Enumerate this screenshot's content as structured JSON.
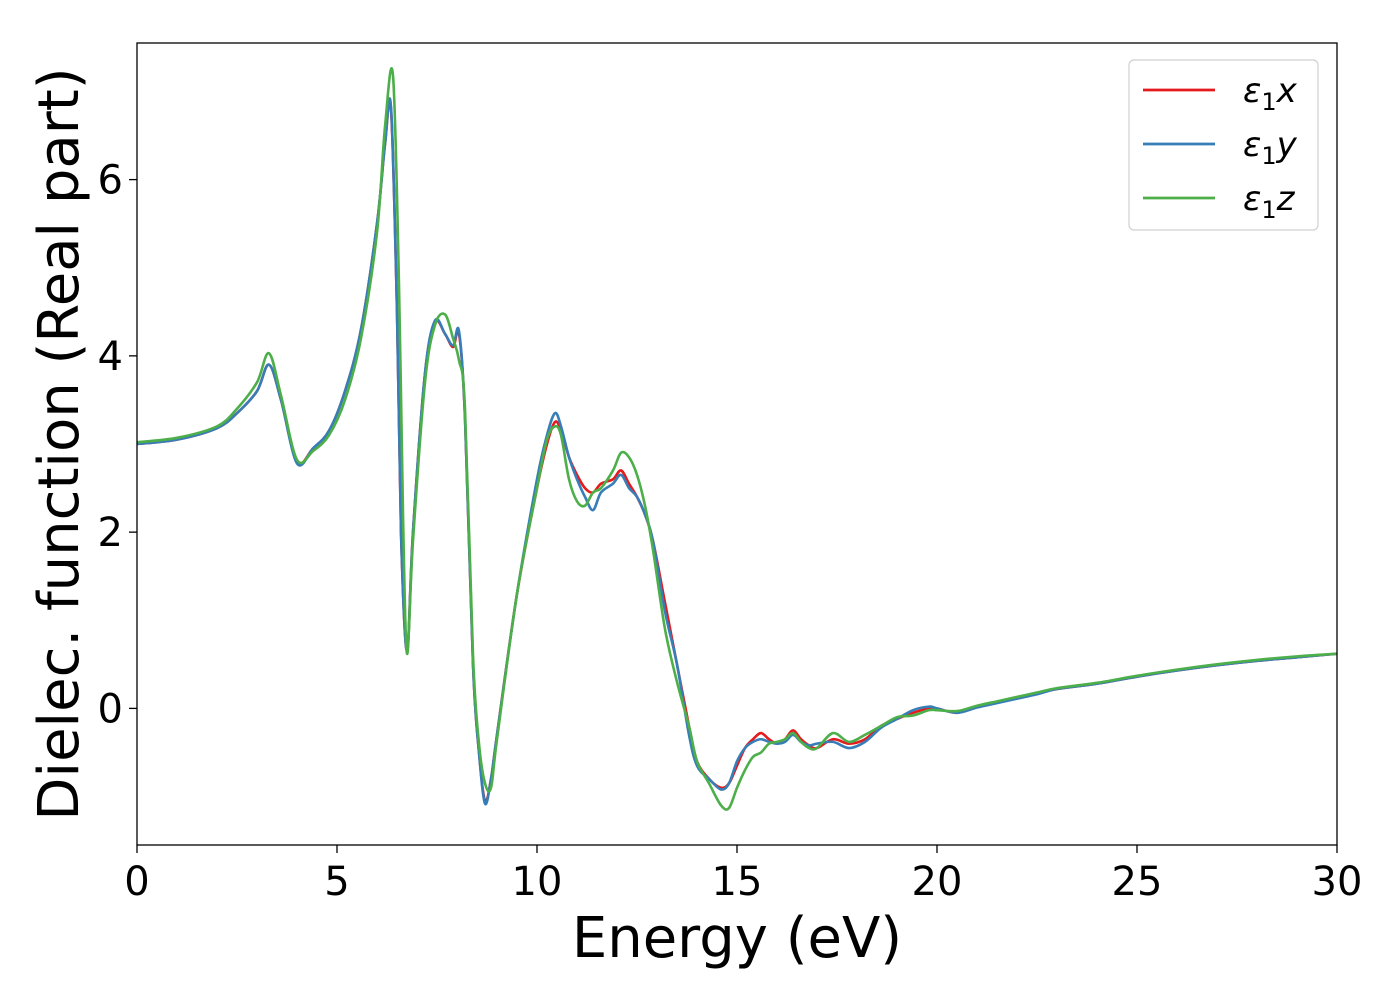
{
  "chart_data": {
    "type": "line",
    "title": "",
    "xlabel": "Energy (eV)",
    "ylabel": "Dielec. function (Real part)",
    "xlim": [
      0,
      30
    ],
    "ylim": [
      -1.55,
      7.55
    ],
    "xticks": [
      0,
      5,
      10,
      15,
      20,
      25,
      30
    ],
    "yticks": [
      0,
      2,
      4,
      6
    ],
    "grid": false,
    "legend_position": "top-right",
    "series": [
      {
        "name": "ε1x",
        "legend_base": "ε",
        "legend_sub": "1",
        "legend_suffix": "x",
        "color": "#e41a1c",
        "x": [
          0,
          1,
          2,
          2.5,
          3.0,
          3.3,
          3.6,
          4.0,
          4.4,
          4.8,
          5.2,
          5.6,
          6.0,
          6.2,
          6.35,
          6.5,
          6.6,
          6.75,
          6.9,
          7.2,
          7.45,
          7.7,
          7.9,
          8.05,
          8.2,
          8.4,
          8.55,
          8.7,
          8.85,
          9.0,
          9.5,
          10.0,
          10.25,
          10.45,
          10.6,
          10.8,
          11.0,
          11.2,
          11.4,
          11.6,
          11.9,
          12.1,
          12.3,
          12.5,
          12.7,
          12.9,
          13.2,
          13.5,
          13.8,
          14.0,
          14.3,
          14.6,
          14.8,
          15.0,
          15.2,
          15.4,
          15.6,
          15.8,
          16.0,
          16.2,
          16.4,
          16.6,
          16.8,
          17.0,
          17.4,
          17.8,
          18.2,
          18.6,
          19.0,
          19.4,
          19.8,
          20.0,
          20.5,
          21.0,
          21.5,
          22.0,
          22.5,
          23.0,
          24.0,
          25.0,
          26.0,
          27.0,
          28.0,
          29.0,
          30.0
        ],
        "y": [
          3.0,
          3.05,
          3.18,
          3.35,
          3.6,
          3.9,
          3.5,
          2.8,
          2.95,
          3.15,
          3.6,
          4.3,
          5.5,
          6.4,
          6.8,
          4.5,
          2.0,
          0.65,
          2.0,
          3.8,
          4.38,
          4.25,
          4.1,
          4.25,
          3.3,
          0.5,
          -0.5,
          -1.05,
          -0.8,
          -0.3,
          1.3,
          2.5,
          3.0,
          3.25,
          3.15,
          2.85,
          2.65,
          2.5,
          2.45,
          2.55,
          2.6,
          2.7,
          2.55,
          2.4,
          2.2,
          1.9,
          1.2,
          0.5,
          -0.2,
          -0.6,
          -0.8,
          -0.9,
          -0.85,
          -0.65,
          -0.45,
          -0.35,
          -0.28,
          -0.35,
          -0.4,
          -0.35,
          -0.25,
          -0.35,
          -0.42,
          -0.45,
          -0.35,
          -0.4,
          -0.35,
          -0.2,
          -0.12,
          -0.05,
          0.0,
          0.0,
          -0.05,
          0.02,
          0.07,
          0.12,
          0.17,
          0.22,
          0.28,
          0.36,
          0.43,
          0.49,
          0.54,
          0.58,
          0.62
        ]
      },
      {
        "name": "ε1y",
        "legend_base": "ε",
        "legend_sub": "1",
        "legend_suffix": "y",
        "color": "#377eb8",
        "x": [
          0,
          1,
          2,
          2.5,
          3.0,
          3.3,
          3.6,
          4.0,
          4.4,
          4.8,
          5.2,
          5.6,
          6.0,
          6.2,
          6.35,
          6.5,
          6.6,
          6.75,
          6.9,
          7.2,
          7.45,
          7.7,
          7.9,
          8.05,
          8.2,
          8.4,
          8.55,
          8.7,
          8.85,
          9.0,
          9.5,
          10.0,
          10.25,
          10.45,
          10.6,
          10.8,
          11.0,
          11.2,
          11.4,
          11.6,
          11.9,
          12.1,
          12.3,
          12.5,
          12.7,
          12.9,
          13.2,
          13.5,
          13.8,
          14.0,
          14.3,
          14.6,
          14.8,
          15.0,
          15.2,
          15.4,
          15.6,
          15.8,
          16.0,
          16.2,
          16.4,
          16.6,
          16.8,
          17.0,
          17.4,
          17.8,
          18.2,
          18.6,
          19.0,
          19.4,
          19.8,
          20.0,
          20.5,
          21.0,
          21.5,
          22.0,
          22.5,
          23.0,
          24.0,
          25.0,
          26.0,
          27.0,
          28.0,
          29.0,
          30.0
        ],
        "y": [
          3.0,
          3.05,
          3.18,
          3.35,
          3.6,
          3.9,
          3.5,
          2.78,
          2.95,
          3.15,
          3.6,
          4.3,
          5.5,
          6.4,
          6.82,
          4.5,
          2.0,
          0.65,
          2.0,
          3.8,
          4.4,
          4.25,
          4.12,
          4.28,
          3.3,
          0.5,
          -0.5,
          -1.08,
          -0.8,
          -0.3,
          1.3,
          2.6,
          3.1,
          3.35,
          3.2,
          2.85,
          2.6,
          2.4,
          2.25,
          2.45,
          2.55,
          2.65,
          2.5,
          2.4,
          2.2,
          1.9,
          1.1,
          0.5,
          -0.3,
          -0.65,
          -0.8,
          -0.92,
          -0.85,
          -0.6,
          -0.45,
          -0.38,
          -0.35,
          -0.38,
          -0.4,
          -0.38,
          -0.3,
          -0.38,
          -0.42,
          -0.4,
          -0.38,
          -0.45,
          -0.38,
          -0.22,
          -0.12,
          -0.02,
          0.02,
          0.0,
          -0.05,
          0.01,
          0.06,
          0.11,
          0.16,
          0.22,
          0.28,
          0.36,
          0.43,
          0.49,
          0.54,
          0.58,
          0.62
        ]
      },
      {
        "name": "ε1z",
        "legend_base": "ε",
        "legend_sub": "1",
        "legend_suffix": "z",
        "color": "#4daf4a",
        "x": [
          0,
          1,
          2,
          2.5,
          3.0,
          3.3,
          3.6,
          4.0,
          4.4,
          4.8,
          5.2,
          5.6,
          6.0,
          6.2,
          6.4,
          6.55,
          6.65,
          6.75,
          6.9,
          7.2,
          7.45,
          7.7,
          7.9,
          8.05,
          8.2,
          8.4,
          8.55,
          8.7,
          8.85,
          9.0,
          9.5,
          10.0,
          10.25,
          10.45,
          10.6,
          10.8,
          11.0,
          11.2,
          11.4,
          11.6,
          11.9,
          12.1,
          12.3,
          12.5,
          12.7,
          12.9,
          13.2,
          13.5,
          13.8,
          14.0,
          14.3,
          14.6,
          14.8,
          15.0,
          15.2,
          15.4,
          15.6,
          15.8,
          16.0,
          16.2,
          16.4,
          16.6,
          16.8,
          17.0,
          17.4,
          17.8,
          18.2,
          18.6,
          19.0,
          19.4,
          19.8,
          20.0,
          20.5,
          21.0,
          21.5,
          22.0,
          22.5,
          23.0,
          24.0,
          25.0,
          26.0,
          27.0,
          28.0,
          29.0,
          30.0
        ],
        "y": [
          3.02,
          3.07,
          3.2,
          3.4,
          3.7,
          4.03,
          3.55,
          2.82,
          2.92,
          3.1,
          3.5,
          4.2,
          5.4,
          6.6,
          7.18,
          4.8,
          2.2,
          0.62,
          1.9,
          3.7,
          4.35,
          4.47,
          4.2,
          3.95,
          3.4,
          0.6,
          -0.4,
          -0.85,
          -0.9,
          -0.35,
          1.3,
          2.5,
          3.05,
          3.2,
          3.1,
          2.6,
          2.35,
          2.3,
          2.45,
          2.5,
          2.7,
          2.9,
          2.85,
          2.65,
          2.3,
          1.8,
          0.9,
          0.3,
          -0.2,
          -0.6,
          -0.85,
          -1.1,
          -1.13,
          -0.9,
          -0.7,
          -0.55,
          -0.5,
          -0.4,
          -0.38,
          -0.35,
          -0.28,
          -0.38,
          -0.45,
          -0.45,
          -0.28,
          -0.38,
          -0.3,
          -0.2,
          -0.1,
          -0.08,
          -0.02,
          -0.02,
          -0.03,
          0.03,
          0.08,
          0.13,
          0.18,
          0.23,
          0.29,
          0.37,
          0.44,
          0.5,
          0.55,
          0.59,
          0.62
        ]
      }
    ]
  }
}
